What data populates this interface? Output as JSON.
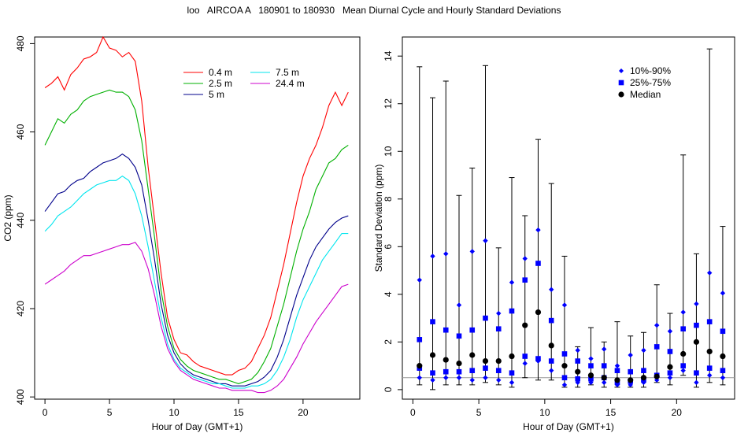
{
  "page_title": "loo   AIRCOA A   180901 to 180930   Mean Diurnal Cycle and Hourly Standard Deviations",
  "chart_data": [
    {
      "type": "line",
      "xlabel": "Hour of Day (GMT+1)",
      "ylabel": "CO2 (ppm)",
      "xlim": [
        -0.8,
        24.4
      ],
      "ylim": [
        399.5,
        481.5
      ],
      "xticks": [
        0,
        5,
        10,
        15,
        20
      ],
      "yticks": [
        400,
        420,
        440,
        460,
        480
      ],
      "legend_position": "top-center",
      "series": [
        {
          "name": "0.4 m",
          "color": "#ff0000",
          "x": [
            0,
            0.5,
            1,
            1.5,
            2,
            2.5,
            3,
            3.5,
            4,
            4.5,
            5,
            5.5,
            6,
            6.5,
            7,
            7.5,
            8,
            8.5,
            9,
            9.5,
            10,
            10.5,
            11,
            11.5,
            12,
            12.5,
            13,
            13.5,
            14,
            14.5,
            15,
            15.5,
            16,
            16.5,
            17,
            17.5,
            18,
            18.5,
            19,
            19.5,
            20,
            20.5,
            21,
            21.5,
            22,
            22.5,
            23,
            23.5
          ],
          "y": [
            470,
            471,
            472.5,
            469.5,
            473,
            474.5,
            476.5,
            477,
            478,
            481.5,
            479,
            478.5,
            477,
            478,
            476,
            467,
            452,
            440,
            428,
            418,
            413,
            410,
            409.5,
            408,
            407,
            406.5,
            406,
            405.5,
            405,
            405,
            406,
            406.5,
            408,
            411,
            414,
            418,
            424,
            430,
            437,
            444,
            450,
            454,
            457,
            461,
            466,
            469,
            466,
            469
          ]
        },
        {
          "name": "2.5 m",
          "color": "#00b000",
          "x": [
            0,
            0.5,
            1,
            1.5,
            2,
            2.5,
            3,
            3.5,
            4,
            4.5,
            5,
            5.5,
            6,
            6.5,
            7,
            7.5,
            8,
            8.5,
            9,
            9.5,
            10,
            10.5,
            11,
            11.5,
            12,
            12.5,
            13,
            13.5,
            14,
            14.5,
            15,
            15.5,
            16,
            16.5,
            17,
            17.5,
            18,
            18.5,
            19,
            19.5,
            20,
            20.5,
            21,
            21.5,
            22,
            22.5,
            23,
            23.5
          ],
          "y": [
            457,
            460,
            463,
            462,
            464,
            465,
            467,
            468,
            468.5,
            469,
            469.5,
            469,
            469,
            468,
            465,
            458,
            447,
            436,
            424,
            416,
            411,
            408.5,
            407,
            406,
            405.5,
            405,
            404.5,
            404,
            404,
            403.5,
            403,
            403.5,
            404,
            405.5,
            408,
            411,
            416,
            421,
            427,
            433,
            438,
            442,
            447,
            450,
            453,
            454,
            456,
            457
          ]
        },
        {
          "name": "5 m",
          "color": "#00008b",
          "x": [
            0,
            0.5,
            1,
            1.5,
            2,
            2.5,
            3,
            3.5,
            4,
            4.5,
            5,
            5.5,
            6,
            6.5,
            7,
            7.5,
            8,
            8.5,
            9,
            9.5,
            10,
            10.5,
            11,
            11.5,
            12,
            12.5,
            13,
            13.5,
            14,
            14.5,
            15,
            15.5,
            16,
            16.5,
            17,
            17.5,
            18,
            18.5,
            19,
            19.5,
            20,
            20.5,
            21,
            21.5,
            22,
            22.5,
            23,
            23.5
          ],
          "y": [
            442,
            444,
            446,
            446.5,
            448,
            449,
            449.5,
            451,
            452,
            453,
            453.5,
            454,
            455,
            454,
            452,
            448,
            440,
            431,
            421,
            414,
            410,
            407.5,
            406,
            405,
            404.5,
            404,
            403.5,
            403,
            403,
            402.5,
            402.5,
            402.5,
            403,
            403.5,
            404.5,
            406,
            409,
            413,
            418,
            423,
            427,
            431,
            434,
            436,
            438,
            439.5,
            440.5,
            441
          ]
        },
        {
          "name": "7.5 m",
          "color": "#00e5ee",
          "x": [
            0,
            0.5,
            1,
            1.5,
            2,
            2.5,
            3,
            3.5,
            4,
            4.5,
            5,
            5.5,
            6,
            6.5,
            7,
            7.5,
            8,
            8.5,
            9,
            9.5,
            10,
            10.5,
            11,
            11.5,
            12,
            12.5,
            13,
            13.5,
            14,
            14.5,
            15,
            15.5,
            16,
            16.5,
            17,
            17.5,
            18,
            18.5,
            19,
            19.5,
            20,
            20.5,
            21,
            21.5,
            22,
            22.5,
            23,
            23.5
          ],
          "y": [
            437.5,
            439,
            441,
            442,
            443,
            444.5,
            446,
            447,
            448,
            448.5,
            449,
            449,
            450,
            449,
            446,
            441,
            434,
            426,
            418,
            412,
            408.5,
            406.5,
            405.5,
            404.5,
            404,
            403.5,
            403,
            403,
            402.5,
            402,
            402,
            402,
            402.5,
            402.5,
            403,
            404,
            406,
            409,
            413,
            418,
            422,
            425,
            428,
            431,
            433,
            435,
            437,
            437
          ]
        },
        {
          "name": "24.4 m",
          "color": "#cc00cc",
          "x": [
            0,
            0.5,
            1,
            1.5,
            2,
            2.5,
            3,
            3.5,
            4,
            4.5,
            5,
            5.5,
            6,
            6.5,
            7,
            7.5,
            8,
            8.5,
            9,
            9.5,
            10,
            10.5,
            11,
            11.5,
            12,
            12.5,
            13,
            13.5,
            14,
            14.5,
            15,
            15.5,
            16,
            16.5,
            17,
            17.5,
            18,
            18.5,
            19,
            19.5,
            20,
            20.5,
            21,
            21.5,
            22,
            22.5,
            23,
            23.5
          ],
          "y": [
            425.5,
            426.5,
            427.5,
            428.5,
            430,
            431,
            432,
            432,
            432.5,
            433,
            433.5,
            434,
            434.5,
            434.5,
            435,
            433,
            429,
            423,
            416,
            411,
            408,
            406,
            405,
            404,
            403.5,
            403,
            402.5,
            402,
            402,
            401.5,
            401.5,
            401.5,
            401.5,
            401,
            401,
            401.5,
            402.5,
            404,
            406.5,
            409,
            412,
            414.5,
            417,
            419,
            421,
            423,
            425,
            425.5
          ]
        }
      ]
    },
    {
      "type": "scatter",
      "xlabel": "Hour of Day (GMT+1)",
      "ylabel": "Standard Deviation (ppm)",
      "xlim": [
        -0.8,
        24.4
      ],
      "ylim": [
        -0.4,
        14.8
      ],
      "xticks": [
        0,
        5,
        10,
        15,
        20
      ],
      "yticks": [
        0,
        2,
        4,
        6,
        8,
        10,
        12,
        14
      ],
      "reference_line": 0.5,
      "legend_position": "top-right",
      "legend": [
        {
          "label": "10%-90%",
          "marker": "diamond",
          "color": "#0000ff"
        },
        {
          "label": "25%-75%",
          "marker": "square",
          "color": "#0000ff"
        },
        {
          "label": "Median",
          "marker": "circle",
          "color": "#000000"
        }
      ],
      "hours": [
        0.5,
        1.5,
        2.5,
        3.5,
        4.5,
        5.5,
        6.5,
        7.5,
        8.5,
        9.5,
        10.5,
        11.5,
        12.5,
        13.5,
        14.5,
        15.5,
        16.5,
        17.5,
        18.5,
        19.5,
        20.5,
        21.5,
        22.5,
        23.5
      ],
      "min": [
        0.2,
        0.0,
        0.2,
        0.2,
        0.2,
        0.3,
        0.2,
        0.1,
        0.5,
        0.4,
        0.4,
        0.1,
        0.1,
        0.2,
        0.1,
        0.1,
        0.1,
        0.1,
        0.3,
        0.2,
        0.6,
        0.1,
        0.3,
        0.2
      ],
      "p10": [
        0.5,
        0.4,
        0.5,
        0.5,
        0.4,
        0.5,
        0.4,
        0.3,
        1.1,
        1.2,
        0.8,
        0.2,
        0.3,
        0.3,
        0.3,
        0.2,
        0.2,
        0.3,
        0.4,
        0.5,
        0.8,
        0.3,
        0.6,
        0.5
      ],
      "p25": [
        0.9,
        0.7,
        0.75,
        0.75,
        0.8,
        0.9,
        0.8,
        0.7,
        1.4,
        1.3,
        1.2,
        0.5,
        0.45,
        0.45,
        0.5,
        0.3,
        0.35,
        0.4,
        0.6,
        0.7,
        1.0,
        0.7,
        0.9,
        0.8
      ],
      "median": [
        1.0,
        1.45,
        1.25,
        1.1,
        1.45,
        1.2,
        1.2,
        1.4,
        2.7,
        3.25,
        1.85,
        1.0,
        0.75,
        0.6,
        0.5,
        0.4,
        0.4,
        0.5,
        0.55,
        0.95,
        1.5,
        2.0,
        1.6,
        1.4
      ],
      "p75": [
        2.1,
        2.85,
        2.5,
        2.25,
        2.5,
        3.0,
        2.55,
        3.3,
        4.6,
        5.3,
        2.9,
        1.5,
        1.2,
        1.0,
        1.0,
        0.8,
        0.75,
        0.8,
        1.8,
        1.6,
        2.55,
        2.7,
        2.85,
        2.45
      ],
      "p90": [
        4.6,
        5.6,
        5.7,
        3.55,
        5.8,
        6.25,
        3.2,
        4.5,
        5.5,
        6.7,
        4.2,
        3.55,
        1.65,
        1.3,
        1.7,
        1.0,
        1.45,
        1.65,
        2.7,
        2.45,
        3.25,
        3.6,
        4.9,
        4.05
      ],
      "max": [
        13.55,
        12.25,
        12.95,
        8.15,
        9.3,
        13.6,
        5.95,
        8.9,
        7.3,
        10.5,
        8.65,
        5.6,
        1.8,
        2.6,
        2.0,
        2.85,
        2.25,
        2.4,
        4.4,
        3.2,
        9.85,
        5.7,
        14.3,
        6.85
      ]
    }
  ]
}
